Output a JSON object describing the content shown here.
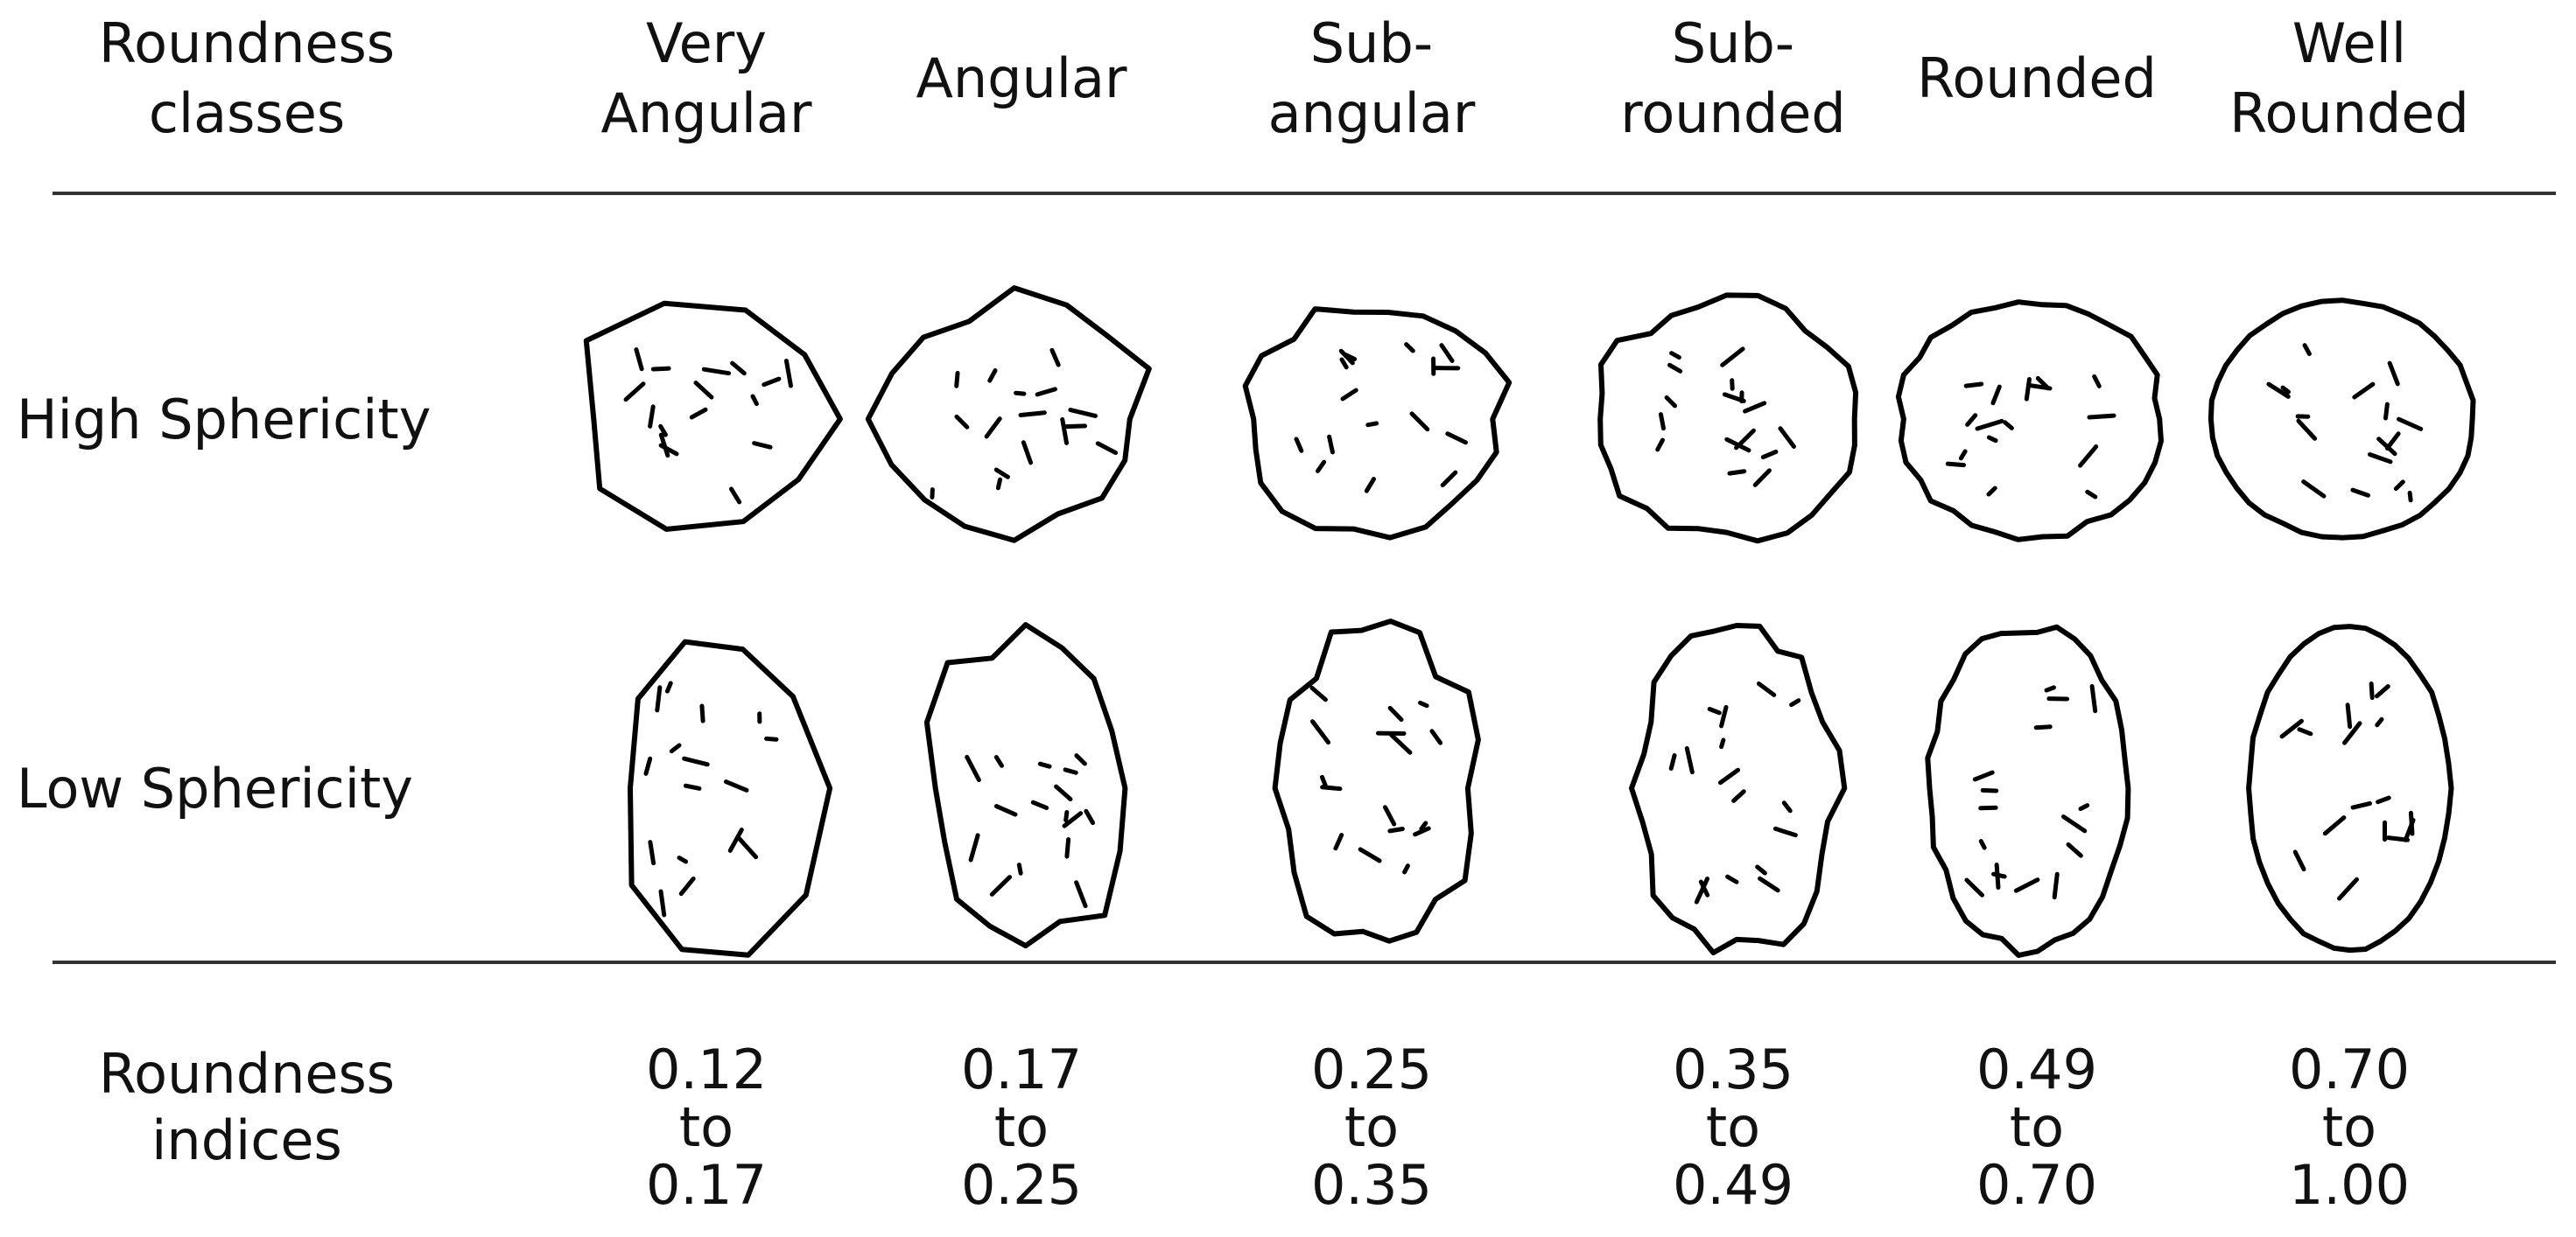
{
  "header": {
    "label": [
      "Roundness",
      "classes"
    ]
  },
  "columns": [
    {
      "name": [
        "Very",
        "Angular"
      ],
      "indices": [
        "0.12",
        "to",
        "0.17"
      ]
    },
    {
      "name": [
        "Angular"
      ],
      "indices": [
        "0.17",
        "to",
        "0.25"
      ]
    },
    {
      "name": [
        "Sub-",
        "angular"
      ],
      "indices": [
        "0.25",
        "to",
        "0.35"
      ]
    },
    {
      "name": [
        "Sub-",
        "rounded"
      ],
      "indices": [
        "0.35",
        "to",
        "0.49"
      ]
    },
    {
      "name": [
        "Rounded"
      ],
      "indices": [
        "0.49",
        "to",
        "0.70"
      ]
    },
    {
      "name": [
        "Well",
        "Rounded"
      ],
      "indices": [
        "0.70",
        "to",
        "1.00"
      ]
    }
  ],
  "rows": [
    "High Sphericity",
    "Low Sphericity"
  ],
  "footer": {
    "label": [
      "Roundness",
      "indices"
    ]
  }
}
